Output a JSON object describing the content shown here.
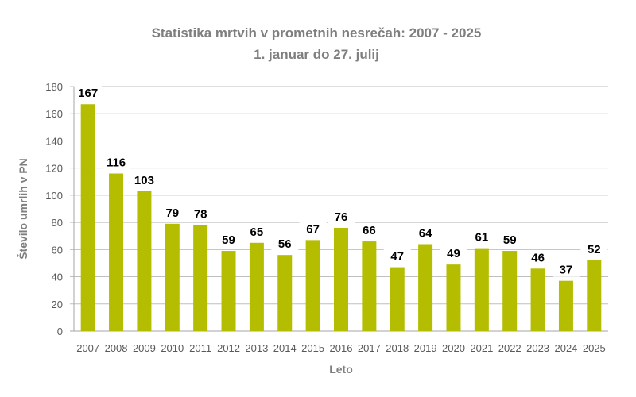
{
  "chart_data": {
    "type": "bar",
    "title": "Statistika mrtvih v prometnih nesrečah: 2007 - 2025",
    "subtitle": "1. januar do 27. julij",
    "xlabel": "Leto",
    "ylabel": "Število umrlih v PN",
    "categories": [
      "2007",
      "2008",
      "2009",
      "2010",
      "2011",
      "2012",
      "2013",
      "2014",
      "2015",
      "2016",
      "2017",
      "2018",
      "2019",
      "2020",
      "2021",
      "2022",
      "2023",
      "2024",
      "2025"
    ],
    "values": [
      167,
      116,
      103,
      79,
      78,
      59,
      65,
      56,
      67,
      76,
      66,
      47,
      64,
      49,
      61,
      59,
      46,
      37,
      52
    ],
    "ylim": [
      0,
      180
    ],
    "yticks": [
      0,
      20,
      40,
      60,
      80,
      100,
      120,
      140,
      160,
      180
    ],
    "grid": true,
    "colors": {
      "bar": "#b5bd00",
      "label": "#000000",
      "highlight_label": "#e0161b",
      "grid": "#bfbfbf"
    },
    "highlight_category": "2025"
  }
}
